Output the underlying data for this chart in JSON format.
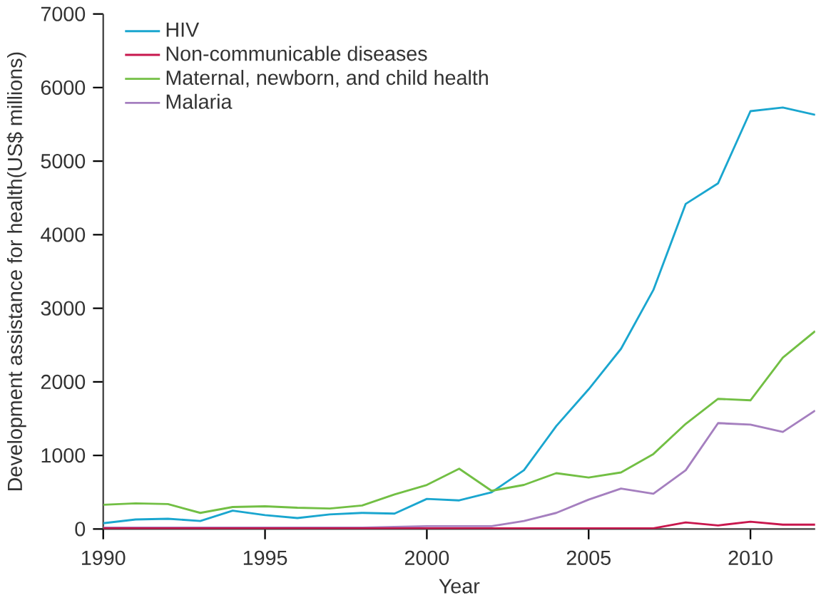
{
  "chart_data": {
    "type": "line",
    "xlabel": "Year",
    "ylabel": "Development assistance for health(US$ millions)",
    "x": [
      1990,
      1991,
      1992,
      1993,
      1994,
      1995,
      1996,
      1997,
      1998,
      1999,
      2000,
      2001,
      2002,
      2003,
      2004,
      2005,
      2006,
      2007,
      2008,
      2009,
      2010,
      2011,
      2012
    ],
    "series": [
      {
        "name": "HIV",
        "color": "#1aa6cf",
        "values": [
          80,
          130,
          140,
          110,
          250,
          190,
          150,
          200,
          220,
          210,
          410,
          390,
          500,
          800,
          1400,
          1900,
          2450,
          3250,
          4420,
          4700,
          5680,
          5730,
          5630
        ]
      },
      {
        "name": "Non-communicable diseases",
        "color": "#c8174d",
        "values": [
          10,
          10,
          10,
          10,
          10,
          10,
          10,
          10,
          10,
          10,
          10,
          10,
          10,
          10,
          10,
          10,
          10,
          10,
          90,
          50,
          100,
          60,
          60
        ]
      },
      {
        "name": "Maternal, newborn, and child health",
        "color": "#72bf44",
        "values": [
          330,
          350,
          340,
          220,
          300,
          310,
          290,
          280,
          320,
          470,
          600,
          820,
          520,
          600,
          760,
          700,
          770,
          1020,
          1430,
          1770,
          1750,
          2330,
          2690
        ]
      },
      {
        "name": "Malaria",
        "color": "#a57fbf",
        "values": [
          20,
          20,
          20,
          20,
          20,
          20,
          20,
          20,
          20,
          30,
          40,
          40,
          40,
          110,
          220,
          400,
          550,
          480,
          800,
          1440,
          1420,
          1320,
          1610
        ]
      }
    ],
    "xlim": [
      1990,
      2012
    ],
    "xticks": [
      1990,
      1995,
      2000,
      2005,
      2010
    ],
    "ylim": [
      0,
      7000
    ],
    "yticks": [
      0,
      1000,
      2000,
      3000,
      4000,
      5000,
      6000,
      7000
    ],
    "legend": "top left",
    "grid": false,
    "marker": "none",
    "line_style": "solid"
  }
}
